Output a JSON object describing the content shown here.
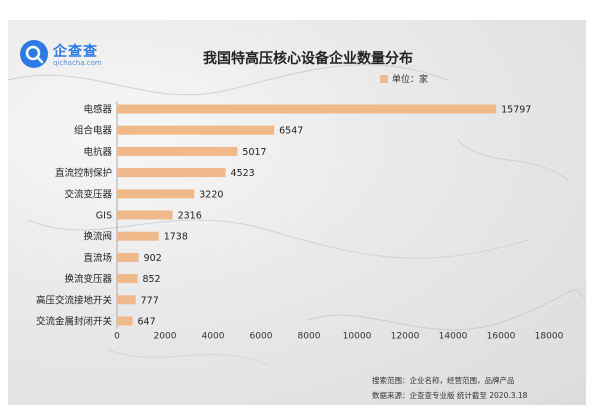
{
  "logo": {
    "name_cn": "企查查",
    "name_en": "qichacha.com"
  },
  "chart_data": {
    "type": "bar",
    "orientation": "horizontal",
    "title": "我国特高压核心设备企业数量分布",
    "legend_label": "单位：家",
    "categories": [
      "电感器",
      "组合电器",
      "电抗器",
      "直流控制保护",
      "交流变压器",
      "GIS",
      "换流阀",
      "直流场",
      "换流变压器",
      "高压交流接地开关",
      "交流金属封闭开关"
    ],
    "values": [
      15797,
      6547,
      5017,
      4523,
      3220,
      2316,
      1738,
      902,
      852,
      777,
      647
    ],
    "xlim": [
      0,
      18000
    ],
    "xticks": [
      0,
      2000,
      4000,
      6000,
      8000,
      10000,
      12000,
      14000,
      16000,
      18000
    ],
    "bar_color": "#f0b98a",
    "grid": false
  },
  "footnotes": {
    "search_scope": "搜索范围：企业名称，经营范围，品牌产品",
    "data_source": "数据来源：企查查专业版  统计截至 2020.3.18"
  }
}
